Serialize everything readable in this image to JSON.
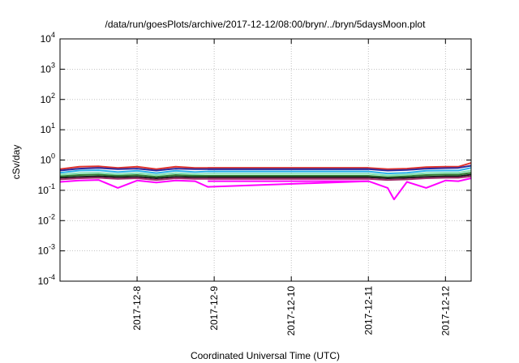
{
  "chart_data": {
    "type": "line",
    "title": "/data/run/goesPlots/archive/2017-12-12/08:00/bryn/../bryn/5daysMoon.plot",
    "xlabel": "Coordinated Universal Time (UTC)",
    "ylabel": "cSv/day",
    "yscale": "log",
    "ylim": [
      0.0001,
      10000
    ],
    "xlim": [
      "2017-12-07 00:00",
      "2017-12-12 08:00"
    ],
    "grid": true,
    "y_ticks": [
      {
        "value": 0.0001,
        "base": "10",
        "exp": "-4"
      },
      {
        "value": 0.001,
        "base": "10",
        "exp": "-3"
      },
      {
        "value": 0.01,
        "base": "10",
        "exp": "-2"
      },
      {
        "value": 0.1,
        "base": "10",
        "exp": "-1"
      },
      {
        "value": 1,
        "base": "10",
        "exp": "0"
      },
      {
        "value": 10,
        "base": "10",
        "exp": "1"
      },
      {
        "value": 100,
        "base": "10",
        "exp": "2"
      },
      {
        "value": 1000,
        "base": "10",
        "exp": "3"
      },
      {
        "value": 10000,
        "base": "10",
        "exp": "4"
      }
    ],
    "x_ticks": [
      {
        "value": "2017-12-08 00:00",
        "label": "2017-12-8"
      },
      {
        "value": "2017-12-09 00:00",
        "label": "2017-12-9"
      },
      {
        "value": "2017-12-10 00:00",
        "label": "2017-12-10"
      },
      {
        "value": "2017-12-11 00:00",
        "label": "2017-12-11"
      },
      {
        "value": "2017-12-12 00:00",
        "label": "2017-12-12"
      }
    ],
    "gap": [
      "2017-12-08 22:00",
      "2017-12-11 00:00"
    ],
    "series": [
      {
        "color": "#e0322c",
        "baseline": 0.55,
        "x": [
          "2017-12-07 00:00",
          "2017-12-07 06:00",
          "2017-12-07 12:00",
          "2017-12-07 18:00",
          "2017-12-08 00:00",
          "2017-12-08 06:00",
          "2017-12-08 12:00",
          "2017-12-08 18:00",
          "2017-12-08 22:00",
          "2017-12-11 00:00",
          "2017-12-11 06:00",
          "2017-12-11 12:00",
          "2017-12-11 18:00",
          "2017-12-12 00:00",
          "2017-12-12 04:00",
          "2017-12-12 08:00"
        ],
        "values": [
          0.5,
          0.6,
          0.62,
          0.55,
          0.6,
          0.5,
          0.6,
          0.55,
          0.55,
          0.55,
          0.5,
          0.52,
          0.58,
          0.6,
          0.6,
          0.8
        ]
      },
      {
        "color": "#2b2b9e",
        "baseline": 0.5,
        "x": [
          "2017-12-07 00:00",
          "2017-12-07 06:00",
          "2017-12-07 12:00",
          "2017-12-07 18:00",
          "2017-12-08 00:00",
          "2017-12-08 06:00",
          "2017-12-08 12:00",
          "2017-12-08 18:00",
          "2017-12-08 22:00",
          "2017-12-11 00:00",
          "2017-12-11 06:00",
          "2017-12-11 12:00",
          "2017-12-11 18:00",
          "2017-12-12 00:00",
          "2017-12-12 04:00",
          "2017-12-12 08:00"
        ],
        "values": [
          0.45,
          0.52,
          0.55,
          0.5,
          0.52,
          0.45,
          0.52,
          0.5,
          0.5,
          0.5,
          0.45,
          0.47,
          0.52,
          0.54,
          0.55,
          0.65
        ]
      },
      {
        "color": "#2ab0e8",
        "baseline": 0.42,
        "x": [
          "2017-12-07 00:00",
          "2017-12-07 06:00",
          "2017-12-07 12:00",
          "2017-12-07 18:00",
          "2017-12-08 00:00",
          "2017-12-08 06:00",
          "2017-12-08 12:00",
          "2017-12-08 18:00",
          "2017-12-08 22:00",
          "2017-12-11 00:00",
          "2017-12-11 06:00",
          "2017-12-11 12:00",
          "2017-12-11 18:00",
          "2017-12-12 00:00",
          "2017-12-12 04:00",
          "2017-12-12 08:00"
        ],
        "values": [
          0.38,
          0.45,
          0.46,
          0.4,
          0.44,
          0.37,
          0.44,
          0.4,
          0.42,
          0.42,
          0.36,
          0.38,
          0.44,
          0.45,
          0.45,
          0.55
        ]
      },
      {
        "color": "#7fe0b0",
        "baseline": 0.35,
        "x": [
          "2017-12-07 00:00",
          "2017-12-07 06:00",
          "2017-12-07 12:00",
          "2017-12-07 18:00",
          "2017-12-08 00:00",
          "2017-12-08 06:00",
          "2017-12-08 12:00",
          "2017-12-08 18:00",
          "2017-12-08 22:00",
          "2017-12-11 00:00",
          "2017-12-11 06:00",
          "2017-12-11 12:00",
          "2017-12-11 18:00",
          "2017-12-12 00:00",
          "2017-12-12 04:00",
          "2017-12-12 08:00"
        ],
        "values": [
          0.33,
          0.37,
          0.38,
          0.34,
          0.37,
          0.32,
          0.37,
          0.34,
          0.35,
          0.35,
          0.31,
          0.33,
          0.37,
          0.38,
          0.38,
          0.45
        ]
      },
      {
        "color": "#2e7d32",
        "baseline": 0.3,
        "x": [
          "2017-12-07 00:00",
          "2017-12-07 06:00",
          "2017-12-07 12:00",
          "2017-12-07 18:00",
          "2017-12-08 00:00",
          "2017-12-08 06:00",
          "2017-12-08 12:00",
          "2017-12-08 18:00",
          "2017-12-08 22:00",
          "2017-12-11 00:00",
          "2017-12-11 06:00",
          "2017-12-11 12:00",
          "2017-12-11 18:00",
          "2017-12-12 00:00",
          "2017-12-12 04:00",
          "2017-12-12 08:00"
        ],
        "values": [
          0.29,
          0.32,
          0.33,
          0.3,
          0.32,
          0.28,
          0.32,
          0.3,
          0.3,
          0.3,
          0.27,
          0.29,
          0.32,
          0.33,
          0.33,
          0.38
        ]
      },
      {
        "color": "#1a1a1a",
        "baseline": 0.27,
        "x": [
          "2017-12-07 00:00",
          "2017-12-07 06:00",
          "2017-12-07 12:00",
          "2017-12-07 18:00",
          "2017-12-08 00:00",
          "2017-12-08 06:00",
          "2017-12-08 12:00",
          "2017-12-08 18:00",
          "2017-12-08 22:00",
          "2017-12-11 00:00",
          "2017-12-11 06:00",
          "2017-12-11 12:00",
          "2017-12-11 18:00",
          "2017-12-12 00:00",
          "2017-12-12 04:00",
          "2017-12-12 08:00"
        ],
        "values": [
          0.26,
          0.28,
          0.29,
          0.27,
          0.28,
          0.25,
          0.28,
          0.27,
          0.27,
          0.27,
          0.25,
          0.26,
          0.28,
          0.29,
          0.29,
          0.33
        ]
      },
      {
        "color": "#a0306a",
        "baseline": 0.24,
        "x": [
          "2017-12-07 00:00",
          "2017-12-07 06:00",
          "2017-12-07 12:00",
          "2017-12-07 18:00",
          "2017-12-08 00:00",
          "2017-12-08 06:00",
          "2017-12-08 12:00",
          "2017-12-08 18:00",
          "2017-12-08 22:00",
          "2017-12-11 00:00",
          "2017-12-11 06:00",
          "2017-12-11 12:00",
          "2017-12-11 18:00",
          "2017-12-12 00:00",
          "2017-12-12 04:00",
          "2017-12-12 08:00"
        ],
        "values": [
          0.23,
          0.25,
          0.26,
          0.24,
          0.25,
          0.22,
          0.25,
          0.24,
          0.24,
          0.24,
          0.22,
          0.23,
          0.25,
          0.26,
          0.26,
          0.29
        ]
      },
      {
        "color": "#ff00ff",
        "baseline": 0.2,
        "x": [
          "2017-12-07 00:00",
          "2017-12-07 06:00",
          "2017-12-07 12:00",
          "2017-12-07 18:00",
          "2017-12-08 00:00",
          "2017-12-08 06:00",
          "2017-12-08 12:00",
          "2017-12-08 18:00",
          "2017-12-08 22:00",
          "2017-12-11 00:00",
          "2017-12-11 06:00",
          "2017-12-11 08:00",
          "2017-12-11 12:00",
          "2017-12-11 18:00",
          "2017-12-12 00:00",
          "2017-12-12 04:00",
          "2017-12-12 08:00"
        ],
        "values": [
          0.19,
          0.21,
          0.22,
          0.12,
          0.21,
          0.18,
          0.21,
          0.2,
          0.13,
          0.2,
          0.12,
          0.05,
          0.19,
          0.12,
          0.21,
          0.2,
          0.25
        ]
      }
    ]
  }
}
